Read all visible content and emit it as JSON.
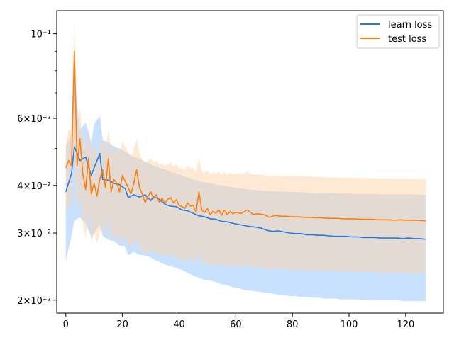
{
  "chart_data": {
    "type": "line",
    "title": "",
    "xlabel": "",
    "ylabel": "",
    "xscale": "linear",
    "yscale": "log",
    "xlim": [
      -3.2,
      133.3
    ],
    "ylim": [
      0.0185,
      0.115
    ],
    "grid": false,
    "legend_position": "top-right",
    "x_ticks": [
      {
        "value": 0,
        "label": "0"
      },
      {
        "value": 20,
        "label": "20"
      },
      {
        "value": 40,
        "label": "40"
      },
      {
        "value": 60,
        "label": "60"
      },
      {
        "value": 80,
        "label": "80"
      },
      {
        "value": 100,
        "label": "100"
      },
      {
        "value": 120,
        "label": "120"
      }
    ],
    "y_ticks": [
      {
        "value": 0.02,
        "label": "2×10⁻²"
      },
      {
        "value": 0.03,
        "label": "3×10⁻²"
      },
      {
        "value": 0.04,
        "label": "4×10⁻²"
      },
      {
        "value": 0.06,
        "label": "6×10⁻²"
      },
      {
        "value": 0.1,
        "label": "10⁻¹"
      }
    ],
    "y_minor_ticks": [
      0.05,
      0.07,
      0.08,
      0.09
    ],
    "series": [
      {
        "name": "learn loss",
        "color": "#1f7be8",
        "band_color": "#99c8ff",
        "x": [
          0,
          2,
          3,
          5,
          7,
          9,
          10,
          12,
          13,
          15,
          17,
          19,
          21,
          22,
          24,
          26,
          28,
          30,
          31,
          33,
          35,
          37,
          39,
          41,
          43,
          45,
          47,
          49,
          51,
          53,
          55,
          57,
          59,
          61,
          63,
          65,
          67,
          69,
          71,
          73,
          75,
          77,
          79,
          81,
          83,
          85,
          87,
          89,
          91,
          93,
          95,
          97,
          99,
          101,
          103,
          105,
          107,
          109,
          111,
          113,
          115,
          117,
          119,
          121,
          123,
          125,
          127
        ],
        "y": [
          0.0385,
          0.043,
          0.0505,
          0.0465,
          0.0475,
          0.0425,
          0.0445,
          0.0485,
          0.0415,
          0.0413,
          0.0405,
          0.0402,
          0.0392,
          0.0372,
          0.0378,
          0.0373,
          0.0378,
          0.0365,
          0.0374,
          0.0368,
          0.0357,
          0.0353,
          0.0352,
          0.0345,
          0.0343,
          0.0338,
          0.0333,
          0.0331,
          0.0327,
          0.0326,
          0.0322,
          0.0321,
          0.0318,
          0.0316,
          0.0314,
          0.0312,
          0.0311,
          0.0309,
          0.0305,
          0.0303,
          0.0304,
          0.0302,
          0.03,
          0.0299,
          0.0299,
          0.0297,
          0.0297,
          0.0296,
          0.0296,
          0.0295,
          0.0294,
          0.0294,
          0.0294,
          0.0293,
          0.0293,
          0.0292,
          0.0292,
          0.0292,
          0.0291,
          0.0291,
          0.0291,
          0.0291,
          0.029,
          0.0291,
          0.029,
          0.029,
          0.0289
        ],
        "lower": [
          0.0253,
          0.0295,
          0.0323,
          0.033,
          0.0318,
          0.0292,
          0.03,
          0.0315,
          0.0295,
          0.0288,
          0.0286,
          0.0278,
          0.0276,
          0.0262,
          0.0268,
          0.0263,
          0.0262,
          0.0259,
          0.0256,
          0.0252,
          0.0248,
          0.0246,
          0.0243,
          0.024,
          0.0236,
          0.0232,
          0.0229,
          0.0226,
          0.0225,
          0.0223,
          0.022,
          0.0219,
          0.0216,
          0.0215,
          0.0213,
          0.0212,
          0.0211,
          0.021,
          0.0209,
          0.0208,
          0.0207,
          0.0206,
          0.0205,
          0.0205,
          0.0204,
          0.0204,
          0.0203,
          0.0203,
          0.0202,
          0.0202,
          0.0202,
          0.0201,
          0.0201,
          0.0201,
          0.0201,
          0.02,
          0.02,
          0.02,
          0.02,
          0.02,
          0.02,
          0.02,
          0.0199,
          0.0199,
          0.0199,
          0.0199,
          0.0199
        ],
        "upper": [
          0.0505,
          0.0545,
          0.076,
          0.056,
          0.0585,
          0.052,
          0.058,
          0.061,
          0.0525,
          0.052,
          0.0505,
          0.05,
          0.049,
          0.0485,
          0.0475,
          0.047,
          0.0462,
          0.0455,
          0.045,
          0.0445,
          0.044,
          0.0435,
          0.043,
          0.0425,
          0.042,
          0.0415,
          0.041,
          0.0408,
          0.0405,
          0.0402,
          0.04,
          0.0398,
          0.0395,
          0.0393,
          0.0392,
          0.039,
          0.0389,
          0.0388,
          0.0387,
          0.0386,
          0.0386,
          0.0385,
          0.0385,
          0.0384,
          0.0384,
          0.0383,
          0.0383,
          0.0382,
          0.0382,
          0.0382,
          0.0381,
          0.0381,
          0.0381,
          0.038,
          0.038,
          0.038,
          0.038,
          0.038,
          0.0379,
          0.0379,
          0.0379,
          0.0379,
          0.0379,
          0.0379,
          0.0379,
          0.0378,
          0.0378
        ]
      },
      {
        "name": "test loss",
        "color": "#ff7f0e",
        "band_color": "#ffd3aa",
        "x": [
          0,
          1,
          2,
          3,
          4,
          5,
          6,
          7,
          8,
          9,
          10,
          11,
          12,
          13,
          14,
          15,
          16,
          17,
          18,
          19,
          20,
          21,
          22,
          23,
          24,
          25,
          26,
          27,
          28,
          29,
          30,
          31,
          32,
          33,
          34,
          35,
          36,
          37,
          38,
          39,
          40,
          41,
          42,
          43,
          44,
          45,
          46,
          47,
          48,
          49,
          50,
          51,
          52,
          53,
          54,
          55,
          56,
          57,
          58,
          59,
          60,
          62,
          64,
          66,
          68,
          70,
          72,
          74,
          76,
          78,
          80,
          82,
          84,
          86,
          88,
          90,
          92,
          94,
          96,
          98,
          100,
          102,
          104,
          106,
          108,
          110,
          112,
          114,
          116,
          118,
          120,
          122,
          124,
          127
        ],
        "y": [
          0.0445,
          0.0465,
          0.045,
          0.09,
          0.045,
          0.053,
          0.043,
          0.039,
          0.047,
          0.038,
          0.0405,
          0.0375,
          0.0415,
          0.044,
          0.0395,
          0.047,
          0.0385,
          0.0415,
          0.0405,
          0.0385,
          0.0425,
          0.041,
          0.0395,
          0.038,
          0.0405,
          0.044,
          0.0395,
          0.038,
          0.036,
          0.0375,
          0.0385,
          0.037,
          0.0378,
          0.0362,
          0.037,
          0.0358,
          0.0368,
          0.0372,
          0.036,
          0.0367,
          0.0355,
          0.0352,
          0.0348,
          0.036,
          0.0353,
          0.0355,
          0.034,
          0.0385,
          0.0345,
          0.034,
          0.0348,
          0.0335,
          0.0342,
          0.0338,
          0.0345,
          0.0334,
          0.0345,
          0.0335,
          0.0342,
          0.0337,
          0.034,
          0.0338,
          0.0345,
          0.0336,
          0.0337,
          0.0335,
          0.033,
          0.0334,
          0.0332,
          0.0332,
          0.0331,
          0.0331,
          0.033,
          0.033,
          0.0329,
          0.0329,
          0.0328,
          0.0328,
          0.0328,
          0.0327,
          0.0327,
          0.0327,
          0.0326,
          0.0326,
          0.0326,
          0.0325,
          0.0325,
          0.0325,
          0.0324,
          0.0325,
          0.0324,
          0.0324,
          0.0324,
          0.0323
        ],
        "lower": [
          0.034,
          0.0355,
          0.035,
          0.05,
          0.034,
          0.038,
          0.032,
          0.029,
          0.034,
          0.0285,
          0.03,
          0.0282,
          0.03,
          0.0315,
          0.029,
          0.033,
          0.0282,
          0.0298,
          0.029,
          0.028,
          0.0295,
          0.0288,
          0.0282,
          0.0275,
          0.0282,
          0.029,
          0.0275,
          0.027,
          0.0265,
          0.0268,
          0.0272,
          0.0265,
          0.0268,
          0.0262,
          0.0265,
          0.026,
          0.0263,
          0.0265,
          0.0258,
          0.0262,
          0.0256,
          0.0254,
          0.0252,
          0.0258,
          0.0254,
          0.0255,
          0.0248,
          0.0268,
          0.025,
          0.0248,
          0.0252,
          0.0245,
          0.0248,
          0.0246,
          0.0249,
          0.0244,
          0.0249,
          0.0244,
          0.0248,
          0.0245,
          0.0246,
          0.0245,
          0.0248,
          0.0244,
          0.0244,
          0.0243,
          0.024,
          0.0242,
          0.0241,
          0.0241,
          0.024,
          0.024,
          0.0239,
          0.0239,
          0.0239,
          0.0239,
          0.0238,
          0.0238,
          0.0238,
          0.0238,
          0.0237,
          0.0237,
          0.0237,
          0.0237,
          0.0237,
          0.0236,
          0.0236,
          0.0236,
          0.0236,
          0.0236,
          0.0236,
          0.0235,
          0.0235,
          0.0235
        ],
        "upper": [
          0.052,
          0.056,
          0.056,
          0.108,
          0.0585,
          0.064,
          0.053,
          0.05,
          0.057,
          0.0495,
          0.051,
          0.048,
          0.05,
          0.054,
          0.0485,
          0.056,
          0.0485,
          0.051,
          0.05,
          0.0485,
          0.052,
          0.0505,
          0.049,
          0.0475,
          0.0495,
          0.053,
          0.0485,
          0.047,
          0.0455,
          0.0465,
          0.0472,
          0.046,
          0.0465,
          0.0452,
          0.0458,
          0.045,
          0.0455,
          0.046,
          0.0448,
          0.0455,
          0.0445,
          0.0442,
          0.044,
          0.045,
          0.0443,
          0.0445,
          0.0432,
          0.0475,
          0.0436,
          0.0432,
          0.0438,
          0.0428,
          0.0432,
          0.043,
          0.0435,
          0.0426,
          0.0434,
          0.0427,
          0.0432,
          0.0428,
          0.043,
          0.0429,
          0.0434,
          0.0427,
          0.0428,
          0.0426,
          0.0422,
          0.0425,
          0.0424,
          0.0424,
          0.0423,
          0.0423,
          0.0422,
          0.0422,
          0.0421,
          0.0421,
          0.042,
          0.042,
          0.042,
          0.0419,
          0.0419,
          0.0419,
          0.0418,
          0.0418,
          0.0418,
          0.0417,
          0.0417,
          0.0417,
          0.0416,
          0.0417,
          0.0416,
          0.0416,
          0.0416,
          0.0415
        ]
      }
    ]
  }
}
